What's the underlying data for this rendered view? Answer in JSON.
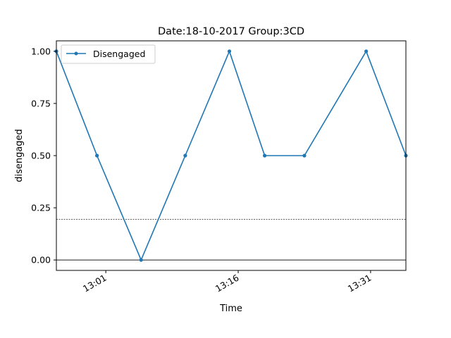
{
  "chart_data": {
    "type": "line",
    "title": "Date:18-10-2017  Group:3CD",
    "xlabel": "Time",
    "ylabel": "disengaged",
    "x_ticks": [
      "13:01",
      "13:16",
      "13:31"
    ],
    "y_ticks": [
      "0.00",
      "0.25",
      "0.50",
      "0.75",
      "1.00"
    ],
    "ylim": [
      -0.05,
      1.05
    ],
    "xlim_minutes": [
      "12:55.4",
      "13:35.0"
    ],
    "legend": {
      "placement": "upper-left",
      "entries": [
        "Disengaged"
      ]
    },
    "series": [
      {
        "name": "Disengaged",
        "color": "#1f77b4",
        "x": [
          "12:55.4",
          "13:00",
          "13:05",
          "13:10",
          "13:15",
          "13:19",
          "13:23.5",
          "13:30.5",
          "13:35"
        ],
        "y": [
          1.0,
          0.5,
          0.0,
          0.5,
          1.0,
          0.5,
          0.5,
          1.0,
          0.5
        ]
      }
    ],
    "reference_lines": [
      {
        "y": 0.195,
        "style": "dashed"
      },
      {
        "y": 0.0,
        "style": "solid"
      }
    ],
    "grid": false
  }
}
